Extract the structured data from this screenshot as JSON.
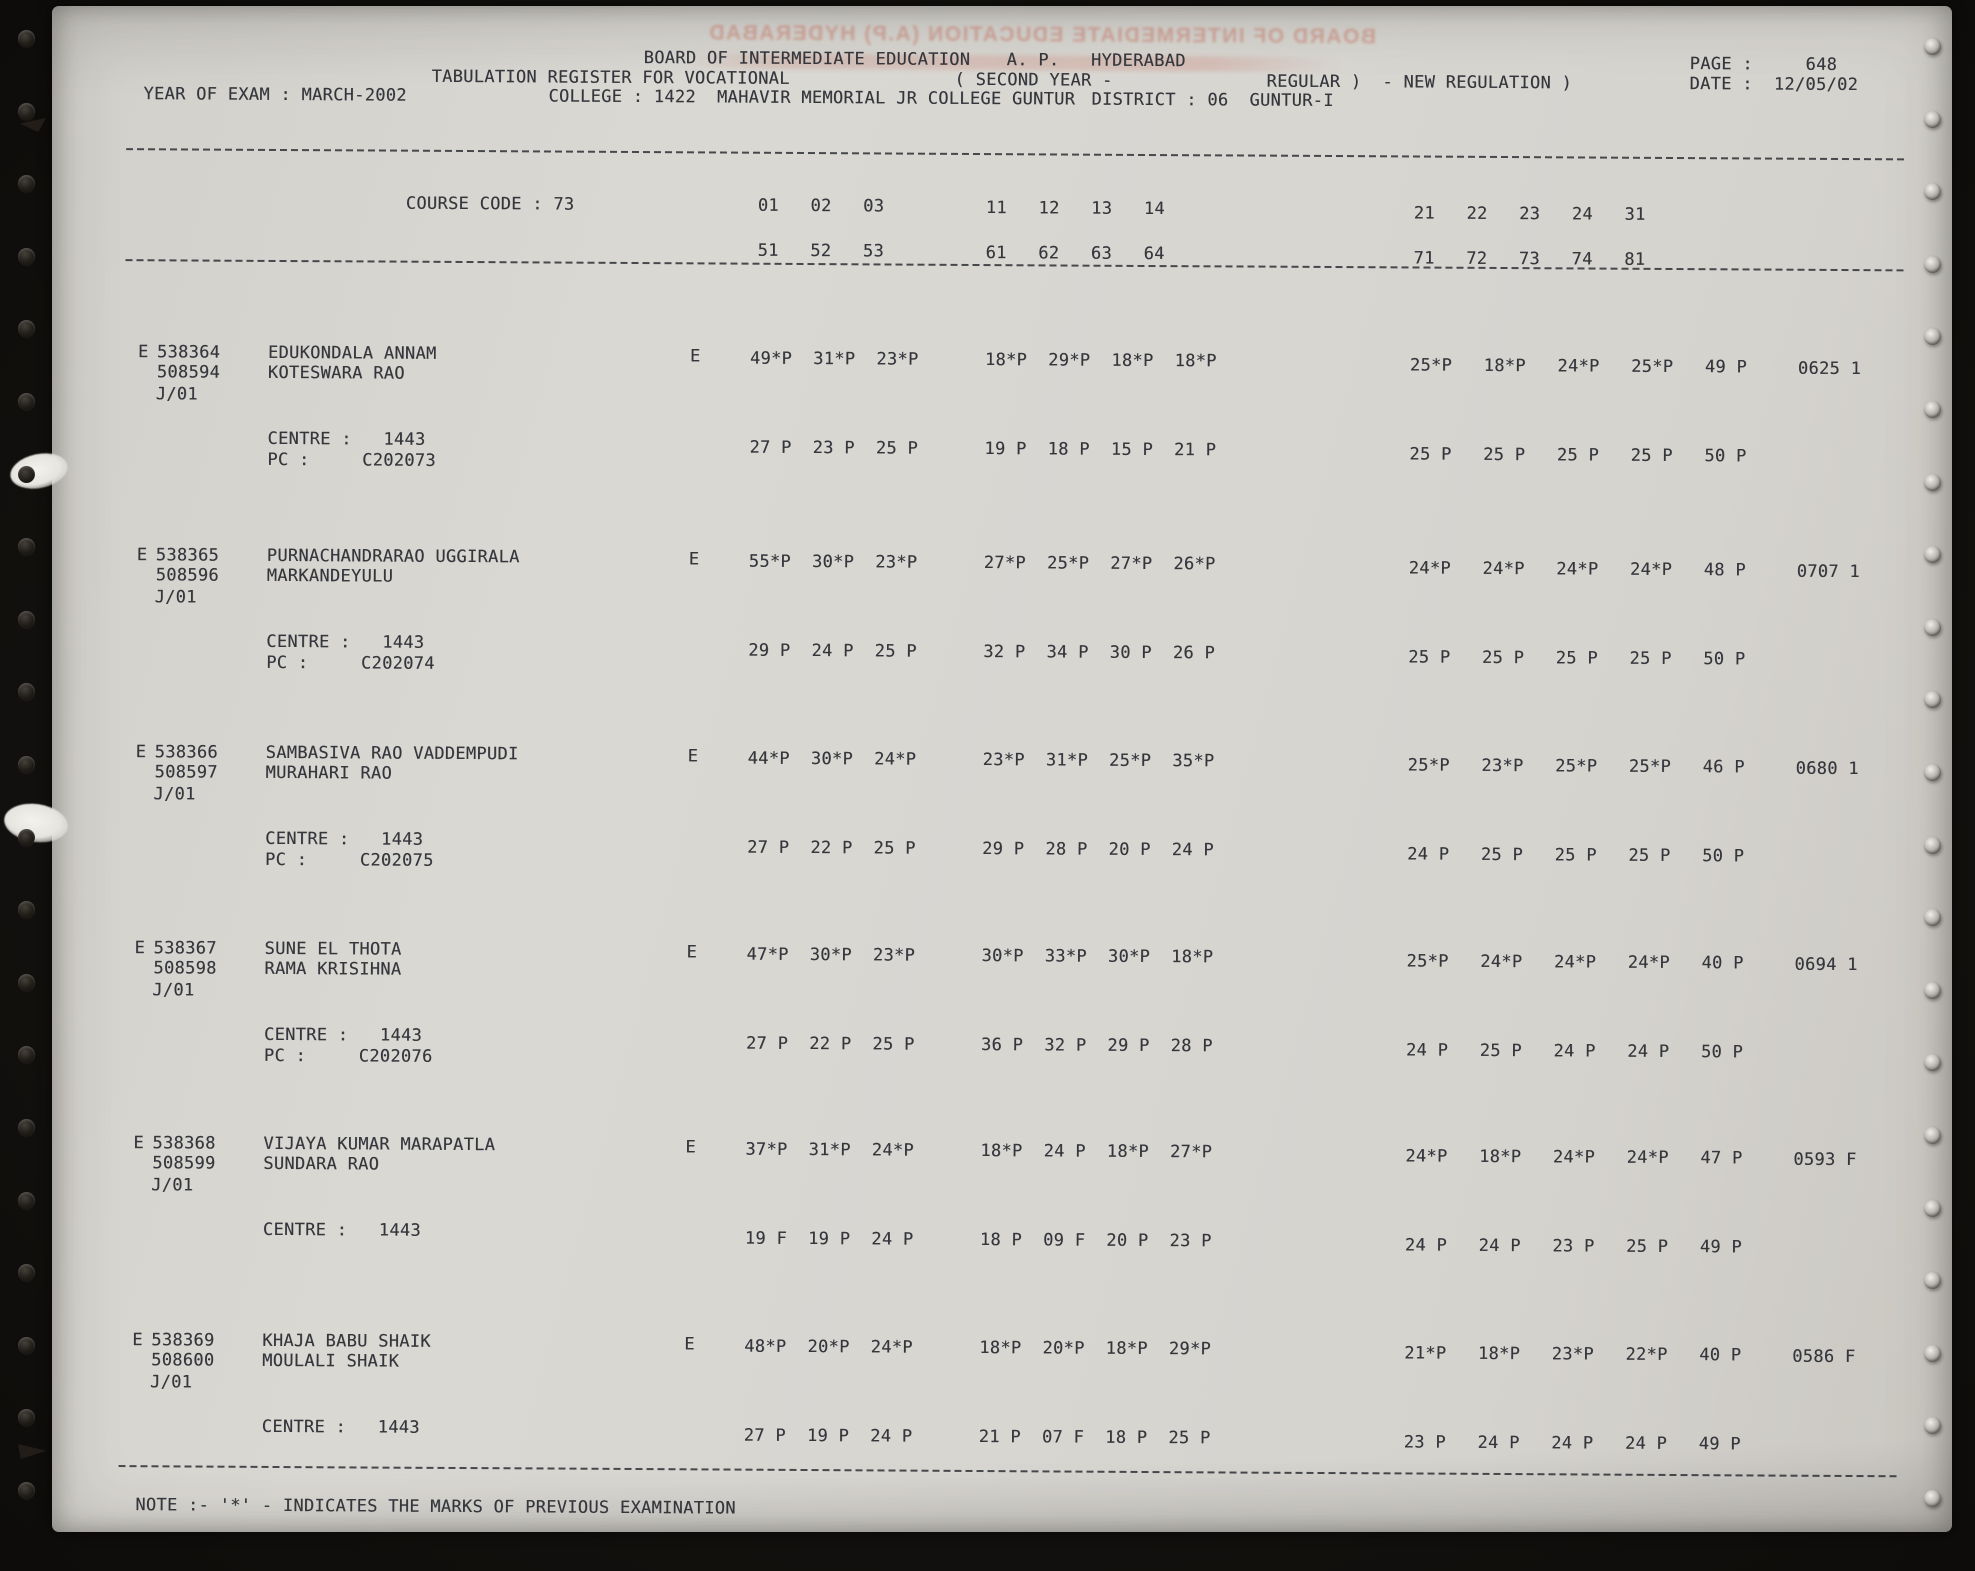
{
  "ghost_text": "BOARD OF INTERMEDIATE EDUCATION (A.P) HYDERABAD",
  "header": {
    "title_left": "BOARD OF INTERMEDIATE EDUCATION",
    "title_right": "A. P.   HYDERABAD",
    "subtitle_left": "TABULATION REGISTER FOR VOCATIONAL",
    "subtitle_mid": "( SECOND YEAR -",
    "subtitle_right": "REGULAR )  - NEW REGULATION )",
    "year_of_exam": "YEAR OF EXAM : MARCH-2002",
    "college": "COLLEGE : 1422  MAHAVIR MEMORIAL JR COLLEGE GUNTUR",
    "district": "DISTRICT : 06  GUNTUR-I",
    "page": "PAGE :     648",
    "date": "DATE :  12/05/02"
  },
  "course": {
    "code": "COURSE CODE : 73",
    "row1_g1": "01   02   03",
    "row1_g2": "11   12   13   14",
    "row1_g3": "21   22   23   24   31",
    "row2_g1": "51   52   53",
    "row2_g2": "61   62   63   64",
    "row2_g3": "71   72   73   74   81"
  },
  "records": [
    {
      "flag": "E",
      "no1": "538364",
      "name1": "EDUKONDALA ANNAM",
      "no2": "508594",
      "name2": "KOTESWARA RAO",
      "j": "J/01",
      "medium": "E",
      "m1g1": "49*P  31*P  23*P",
      "m1g2": "18*P  29*P  18*P  18*P",
      "m1g3": "25*P   18*P   24*P   25*P   49 P",
      "total": "0625 1",
      "centre": "CENTRE :   1443",
      "pc": "PC :     C202073",
      "m2g1": "27 P  23 P  25 P",
      "m2g2": "19 P  18 P  15 P  21 P",
      "m2g3": "25 P   25 P   25 P   25 P   50 P"
    },
    {
      "flag": "E",
      "no1": "538365",
      "name1": "PURNACHANDRARAO UGGIRALA",
      "no2": "508596",
      "name2": "MARKANDEYULU",
      "j": "J/01",
      "medium": "E",
      "m1g1": "55*P  30*P  23*P",
      "m1g2": "27*P  25*P  27*P  26*P",
      "m1g3": "24*P   24*P   24*P   24*P   48 P",
      "total": "0707 1",
      "centre": "CENTRE :   1443",
      "pc": "PC :     C202074",
      "m2g1": "29 P  24 P  25 P",
      "m2g2": "32 P  34 P  30 P  26 P",
      "m2g3": "25 P   25 P   25 P   25 P   50 P"
    },
    {
      "flag": "E",
      "no1": "538366",
      "name1": "SAMBASIVA RAO VADDEMPUDI",
      "no2": "508597",
      "name2": "MURAHARI RAO",
      "j": "J/01",
      "medium": "E",
      "m1g1": "44*P  30*P  24*P",
      "m1g2": "23*P  31*P  25*P  35*P",
      "m1g3": "25*P   23*P   25*P   25*P   46 P",
      "total": "0680 1",
      "centre": "CENTRE :   1443",
      "pc": "PC :     C202075",
      "m2g1": "27 P  22 P  25 P",
      "m2g2": "29 P  28 P  20 P  24 P",
      "m2g3": "24 P   25 P   25 P   25 P   50 P"
    },
    {
      "flag": "E",
      "no1": "538367",
      "name1": "SUNE EL THOTA",
      "no2": "508598",
      "name2": "RAMA KRISIHNA",
      "j": "J/01",
      "medium": "E",
      "m1g1": "47*P  30*P  23*P",
      "m1g2": "30*P  33*P  30*P  18*P",
      "m1g3": "25*P   24*P   24*P   24*P   40 P",
      "total": "0694 1",
      "centre": "CENTRE :   1443",
      "pc": "PC :     C202076",
      "m2g1": "27 P  22 P  25 P",
      "m2g2": "36 P  32 P  29 P  28 P",
      "m2g3": "24 P   25 P   24 P   24 P   50 P"
    },
    {
      "flag": "E",
      "no1": "538368",
      "name1": "VIJAYA KUMAR MARAPATLA",
      "no2": "508599",
      "name2": "SUNDARA RAO",
      "j": "J/01",
      "medium": "E",
      "m1g1": "37*P  31*P  24*P",
      "m1g2": "18*P  24 P  18*P  27*P",
      "m1g3": "24*P   18*P   24*P   24*P   47 P",
      "total": "0593 F",
      "centre": "CENTRE :   1443",
      "m2g1": "19 F  19 P  24 P",
      "m2g2": "18 P  09 F  20 P  23 P",
      "m2g3": "24 P   24 P   23 P   25 P   49 P"
    },
    {
      "flag": "E",
      "no1": "538369",
      "name1": "KHAJA BABU SHAIK",
      "no2": "508600",
      "name2": "MOULALI SHAIK",
      "j": "J/01",
      "medium": "E",
      "m1g1": "48*P  20*P  24*P",
      "m1g2": "18*P  20*P  18*P  29*P",
      "m1g3": "21*P   18*P   23*P   22*P   40 P",
      "total": "0586 F",
      "centre": "CENTRE :   1443",
      "m2g1": "27 P  19 P  24 P",
      "m2g2": "21 P  07 F  18 P  25 P",
      "m2g3": "23 P   24 P   24 P   24 P   49 P"
    }
  ],
  "note": "NOTE :- '*' - INDICATES THE MARKS OF PREVIOUS EXAMINATION"
}
